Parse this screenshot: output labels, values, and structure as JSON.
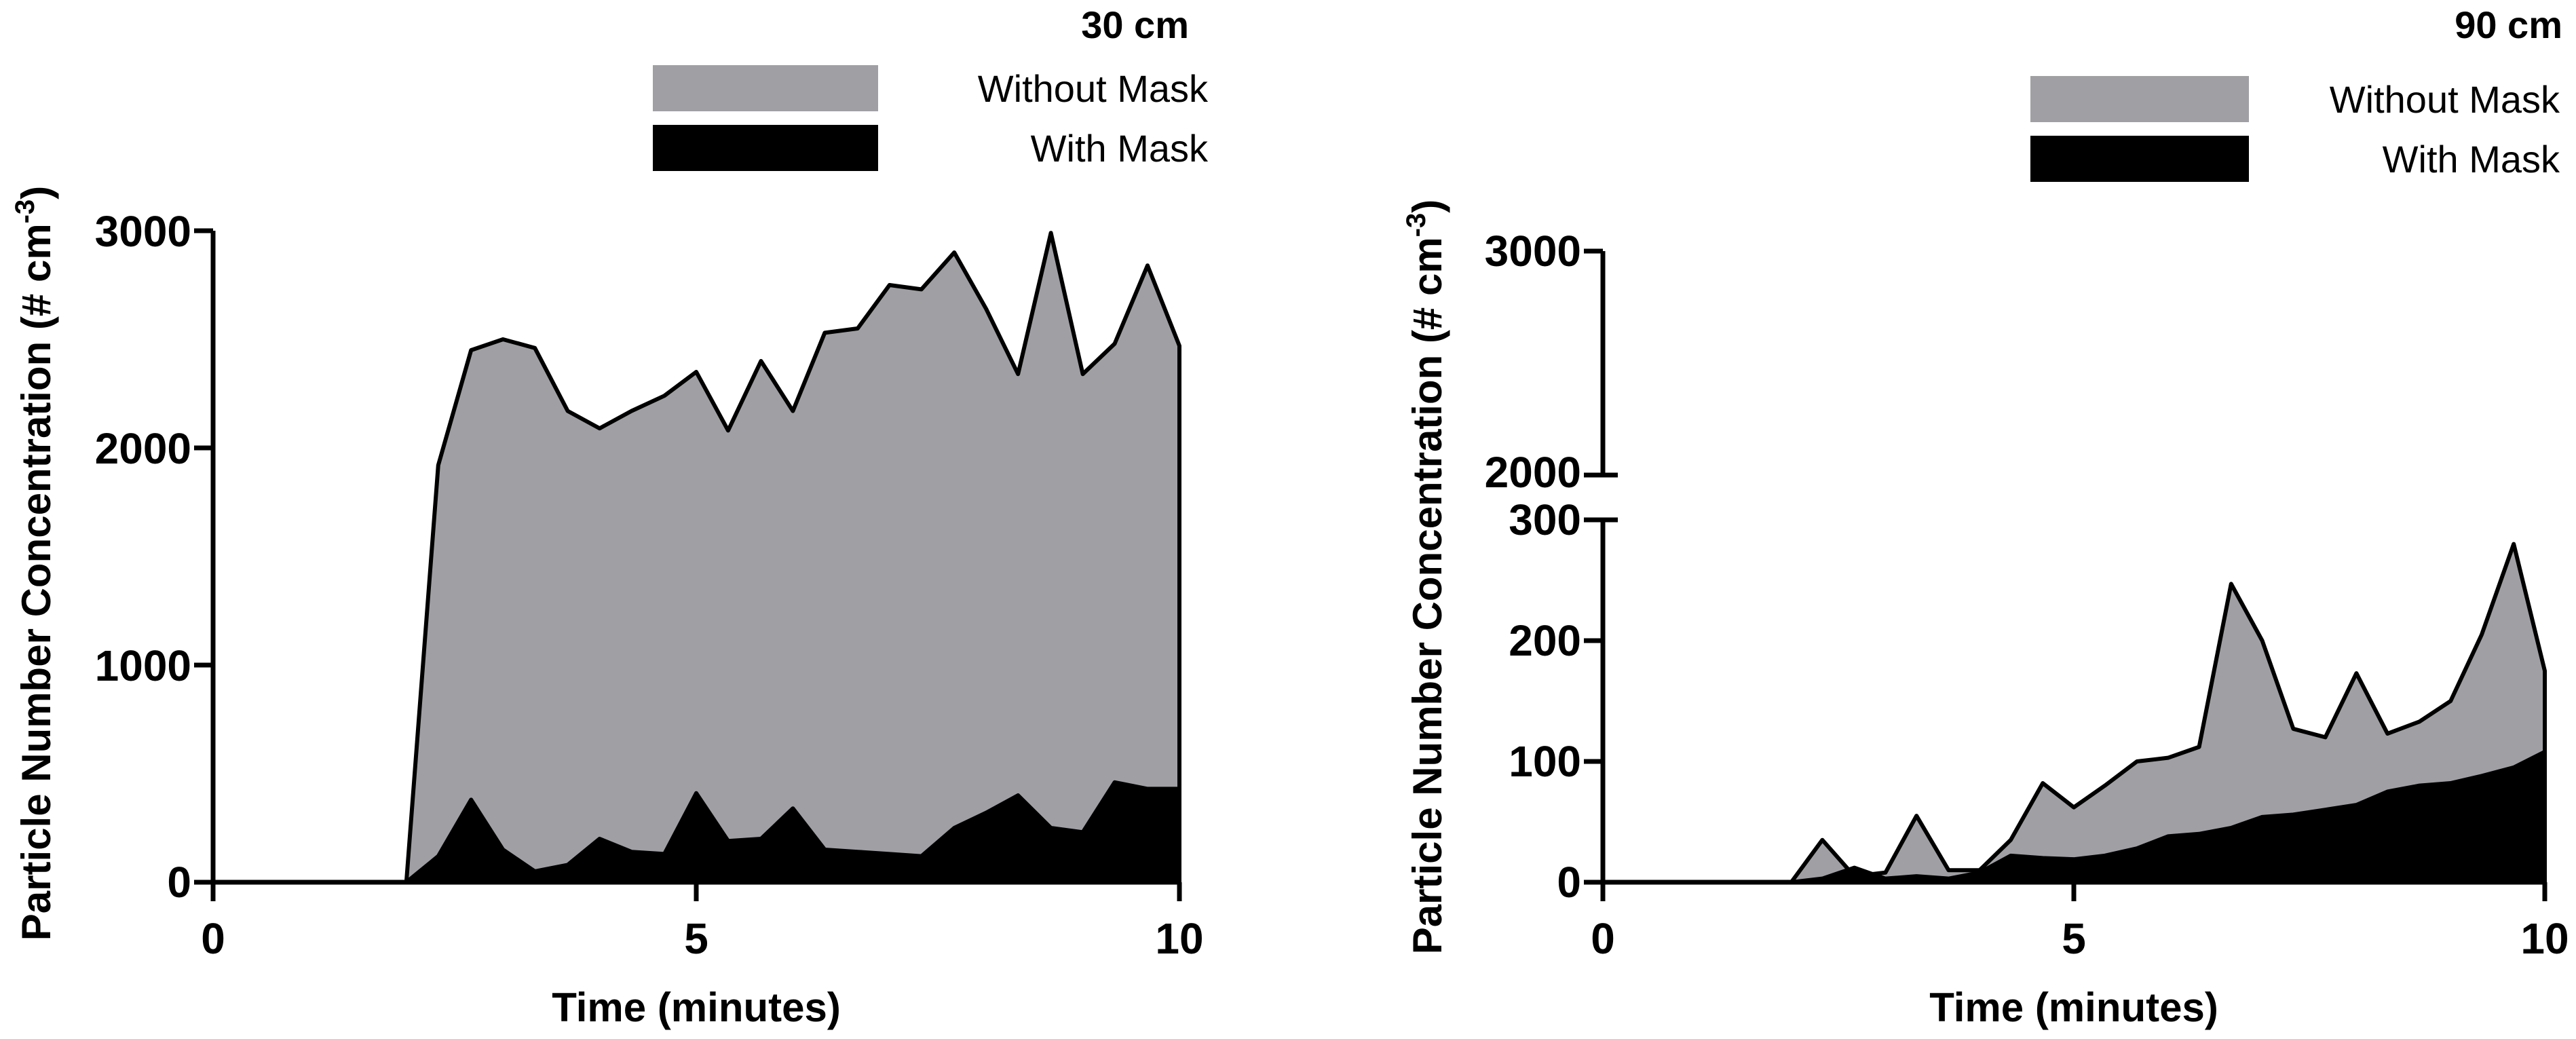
{
  "chart_data": [
    {
      "type": "area",
      "title": "30 cm",
      "xlabel": "Time (minutes)",
      "ylabel": "Particle Number Concentration (# cm",
      "ylabel_sup": "-3",
      "ylabel_close": ")",
      "xlim": [
        0,
        10
      ],
      "ylim": [
        0,
        3000
      ],
      "xticks": [
        "0",
        "5",
        "10"
      ],
      "yticks": [
        "0",
        "1000",
        "2000",
        "3000"
      ],
      "xtick_values": [
        0,
        5,
        10
      ],
      "ytick_values": [
        0,
        1000,
        2000,
        3000
      ],
      "legend_position": "top-right",
      "series": [
        {
          "name": "Without Mask",
          "color": "#a0a0a4",
          "x": [
            0.0,
            0.33,
            0.67,
            1.0,
            1.33,
            1.67,
            2.0,
            2.33,
            2.67,
            3.0,
            3.33,
            3.67,
            4.0,
            4.33,
            4.67,
            5.0,
            5.33,
            5.67,
            6.0,
            6.33,
            6.67,
            7.0,
            7.33,
            7.67,
            8.0,
            8.33,
            8.67,
            9.0,
            9.33,
            9.67,
            10.0
          ],
          "values": [
            0,
            0,
            0,
            0,
            0,
            0,
            0,
            1920,
            2450,
            2500,
            2460,
            2170,
            2090,
            2170,
            2240,
            2350,
            2080,
            2400,
            2170,
            2530,
            2550,
            2750,
            2730,
            2900,
            2640,
            2340,
            2990,
            2340,
            2480,
            2840,
            2470
          ]
        },
        {
          "name": "With Mask",
          "color": "#000000",
          "x": [
            0.0,
            0.33,
            0.67,
            1.0,
            1.33,
            1.67,
            2.0,
            2.33,
            2.67,
            3.0,
            3.33,
            3.67,
            4.0,
            4.33,
            4.67,
            5.0,
            5.33,
            5.67,
            6.0,
            6.33,
            6.67,
            7.0,
            7.33,
            7.67,
            8.0,
            8.33,
            8.67,
            9.0,
            9.33,
            9.67,
            10.0
          ],
          "values": [
            0,
            0,
            0,
            0,
            0,
            0,
            0,
            120,
            380,
            150,
            50,
            80,
            200,
            140,
            130,
            410,
            190,
            200,
            340,
            150,
            140,
            130,
            120,
            250,
            320,
            400,
            250,
            230,
            460,
            430,
            430
          ]
        }
      ]
    },
    {
      "type": "area",
      "title": "90 cm",
      "xlabel": "Time (minutes)",
      "ylabel": "Particle Number Concentration (# cm",
      "ylabel_sup": "-3",
      "ylabel_close": ")",
      "xlim": [
        0,
        10
      ],
      "ylim": [
        0,
        300
      ],
      "broken_axis": {
        "lower": [
          0,
          300
        ],
        "upper": [
          2000,
          3000
        ]
      },
      "xticks": [
        "0",
        "5",
        "10"
      ],
      "yticks_lower": [
        "0",
        "100",
        "200",
        "300"
      ],
      "yticks_upper": [
        "2000",
        "3000"
      ],
      "xtick_values": [
        0,
        5,
        10
      ],
      "ytick_values_lower": [
        0,
        100,
        200,
        300
      ],
      "ytick_values_upper": [
        2000,
        3000
      ],
      "legend_position": "top-right",
      "series": [
        {
          "name": "Without Mask",
          "color": "#a0a0a4",
          "x": [
            0.0,
            0.33,
            0.67,
            1.0,
            1.33,
            1.67,
            2.0,
            2.33,
            2.67,
            3.0,
            3.33,
            3.67,
            4.0,
            4.33,
            4.67,
            5.0,
            5.33,
            5.67,
            6.0,
            6.33,
            6.67,
            7.0,
            7.33,
            7.67,
            8.0,
            8.33,
            8.67,
            9.0,
            9.33,
            9.67,
            10.0
          ],
          "values": [
            0,
            0,
            0,
            0,
            0,
            0,
            0,
            35,
            5,
            8,
            55,
            10,
            10,
            35,
            82,
            62,
            80,
            100,
            103,
            112,
            247,
            200,
            127,
            120,
            173,
            123,
            133,
            150,
            205,
            280,
            175
          ]
        },
        {
          "name": "With Mask",
          "color": "#000000",
          "x": [
            0.0,
            0.33,
            0.67,
            1.0,
            1.33,
            1.67,
            2.0,
            2.33,
            2.67,
            3.0,
            3.33,
            3.67,
            4.0,
            4.33,
            4.67,
            5.0,
            5.33,
            5.67,
            6.0,
            6.33,
            6.67,
            7.0,
            7.33,
            7.67,
            8.0,
            8.33,
            8.67,
            9.0,
            9.33,
            9.67,
            10.0
          ],
          "values": [
            0,
            0,
            0,
            0,
            0,
            0,
            0,
            3,
            12,
            3,
            5,
            3,
            8,
            22,
            20,
            19,
            22,
            28,
            38,
            40,
            45,
            54,
            56,
            60,
            64,
            75,
            80,
            82,
            88,
            95,
            108
          ]
        }
      ]
    }
  ]
}
